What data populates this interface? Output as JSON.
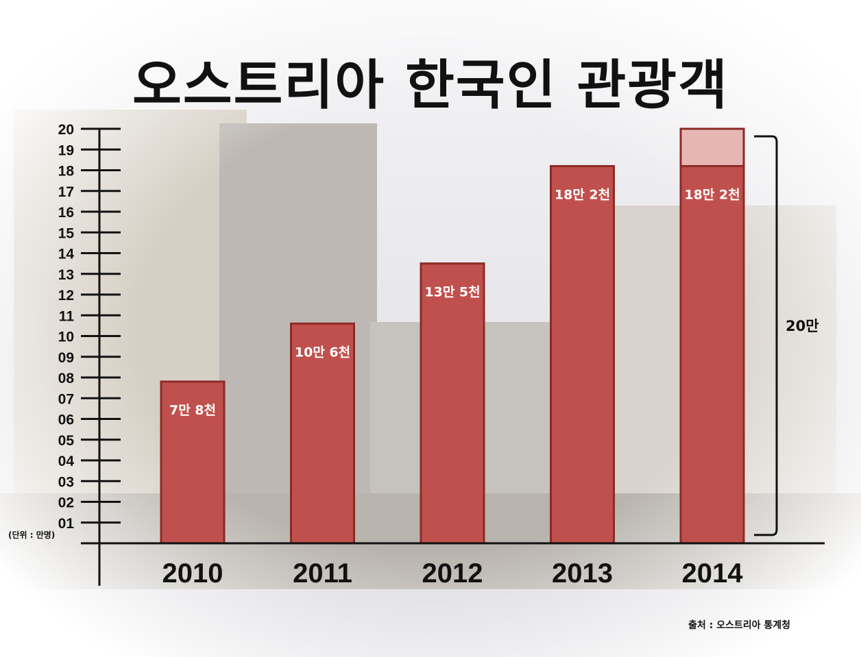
{
  "chart_data": {
    "type": "bar",
    "title": "오스트리아 한국인 관광객",
    "unit_note": "(단위 : 만명)",
    "source": "출처 : 오스트리아 통계청",
    "categories": [
      "2010",
      "2011",
      "2012",
      "2013",
      "2014"
    ],
    "values": [
      7.8,
      10.6,
      13.5,
      18.2,
      18.2
    ],
    "data_labels": [
      "7만 8천",
      "10만 6천",
      "13만 5천",
      "18만 2천",
      "18만 2천"
    ],
    "y_ticks": [
      "01",
      "02",
      "03",
      "04",
      "05",
      "06",
      "07",
      "08",
      "09",
      "10",
      "11",
      "12",
      "13",
      "14",
      "15",
      "16",
      "17",
      "18",
      "19",
      "20"
    ],
    "ylim": [
      0,
      20
    ],
    "extension": {
      "category": "2014",
      "from": 18.2,
      "to": 20,
      "label": "20만"
    },
    "grid": false,
    "colors": {
      "bar": "#c0504d",
      "bar_border": "#8c2a28",
      "extension": "#e6b6b5",
      "axis": "#111111"
    }
  }
}
